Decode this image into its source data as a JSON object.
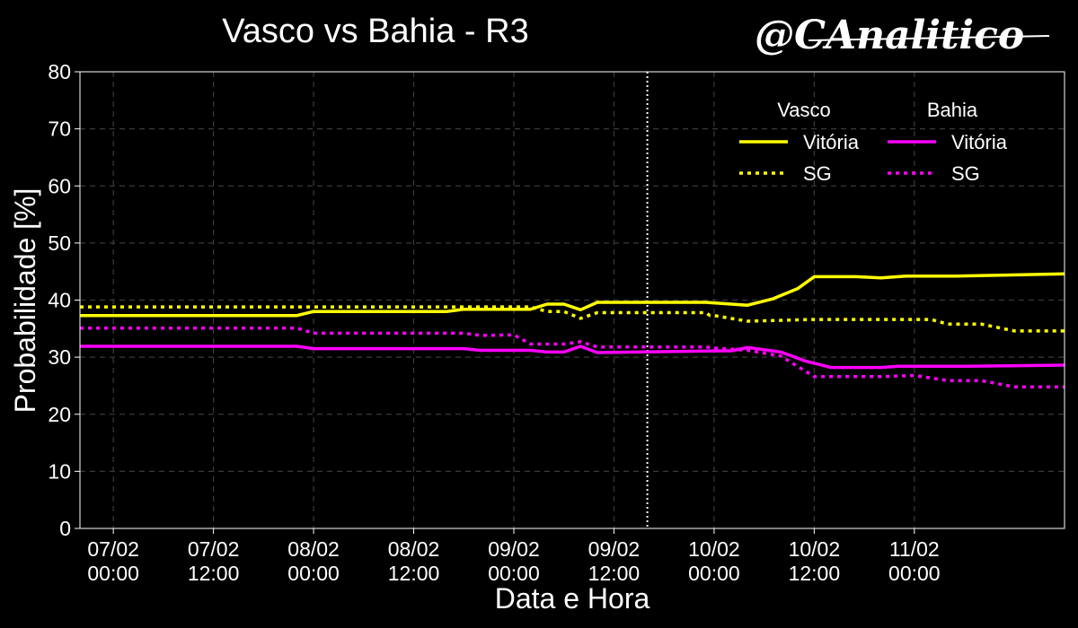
{
  "chart_data": {
    "type": "line",
    "title": "Vasco vs Bahia - R3",
    "watermark": "@CAnalitico",
    "xlabel": "Data e Hora",
    "ylabel": "Probabilidade [%]",
    "ylim": [
      0,
      80
    ],
    "xlim": [
      "06/02 20:00",
      "11/02 18:00"
    ],
    "y_ticks": [
      0,
      10,
      20,
      30,
      40,
      50,
      60,
      70,
      80
    ],
    "x_ticks": [
      {
        "t": "07/02 00:00",
        "line1": "07/02",
        "line2": "00:00"
      },
      {
        "t": "07/02 12:00",
        "line1": "07/02",
        "line2": "12:00"
      },
      {
        "t": "08/02 00:00",
        "line1": "08/02",
        "line2": "00:00"
      },
      {
        "t": "08/02 12:00",
        "line1": "08/02",
        "line2": "12:00"
      },
      {
        "t": "09/02 00:00",
        "line1": "09/02",
        "line2": "00:00"
      },
      {
        "t": "09/02 12:00",
        "line1": "09/02",
        "line2": "12:00"
      },
      {
        "t": "10/02 00:00",
        "line1": "10/02",
        "line2": "00:00"
      },
      {
        "t": "10/02 12:00",
        "line1": "10/02",
        "line2": "12:00"
      },
      {
        "t": "11/02 00:00",
        "line1": "11/02",
        "line2": "00:00"
      }
    ],
    "grid": true,
    "vline": {
      "x": "09/02 16:00",
      "style": "dotted"
    },
    "legend": {
      "placement": "top-right",
      "groups": [
        {
          "title": "Vasco",
          "entries": [
            {
              "label": "Vitória",
              "series": 0
            },
            {
              "label": "SG",
              "series": 1
            }
          ]
        },
        {
          "title": "Bahia",
          "entries": [
            {
              "label": "Vitória",
              "series": 2
            },
            {
              "label": "SG",
              "series": 3
            }
          ]
        }
      ]
    },
    "series": [
      {
        "name": "Vitória",
        "team": "Vasco",
        "color": "#ffff00",
        "style": "solid",
        "points": [
          [
            "06/02 20:00",
            37.3
          ],
          [
            "07/02 22:00",
            37.3
          ],
          [
            "08/02 00:00",
            38.0
          ],
          [
            "08/02 16:00",
            38.0
          ],
          [
            "08/02 18:00",
            38.4
          ],
          [
            "09/02 02:00",
            38.4
          ],
          [
            "09/02 04:00",
            39.3
          ],
          [
            "09/02 06:00",
            39.3
          ],
          [
            "09/02 08:00",
            38.3
          ],
          [
            "09/02 10:00",
            39.6
          ],
          [
            "09/02 23:00",
            39.6
          ],
          [
            "10/02 04:00",
            39.1
          ],
          [
            "10/02 07:00",
            40.2
          ],
          [
            "10/02 10:00",
            42.0
          ],
          [
            "10/02 12:00",
            44.1
          ],
          [
            "10/02 17:00",
            44.1
          ],
          [
            "10/02 20:00",
            43.9
          ],
          [
            "10/02 23:00",
            44.2
          ],
          [
            "11/02 05:00",
            44.2
          ],
          [
            "11/02 18:00",
            44.6
          ]
        ]
      },
      {
        "name": "SG",
        "team": "Vasco",
        "color": "#ffff00",
        "style": "dotted",
        "points": [
          [
            "06/02 20:00",
            38.8
          ],
          [
            "09/02 02:00",
            38.8
          ],
          [
            "09/02 04:00",
            38.0
          ],
          [
            "09/02 06:00",
            38.0
          ],
          [
            "09/02 08:00",
            36.8
          ],
          [
            "09/02 10:00",
            37.8
          ],
          [
            "09/02 23:00",
            37.8
          ],
          [
            "09/02 23:30",
            37.3
          ],
          [
            "10/02 00:00",
            37.3
          ],
          [
            "10/02 04:00",
            36.3
          ],
          [
            "10/02 12:00",
            36.6
          ],
          [
            "11/02 02:00",
            36.6
          ],
          [
            "11/02 04:00",
            35.8
          ],
          [
            "11/02 08:00",
            35.8
          ],
          [
            "11/02 12:00",
            34.6
          ],
          [
            "11/02 18:00",
            34.6
          ]
        ]
      },
      {
        "name": "Vitória",
        "team": "Bahia",
        "color": "#ff00ff",
        "style": "solid",
        "points": [
          [
            "06/02 20:00",
            31.9
          ],
          [
            "07/02 22:00",
            31.9
          ],
          [
            "08/02 00:00",
            31.5
          ],
          [
            "08/02 18:00",
            31.5
          ],
          [
            "08/02 20:00",
            31.2
          ],
          [
            "09/02 02:00",
            31.2
          ],
          [
            "09/02 04:00",
            30.9
          ],
          [
            "09/02 06:00",
            30.9
          ],
          [
            "09/02 08:00",
            31.9
          ],
          [
            "09/02 10:00",
            30.8
          ],
          [
            "10/02 00:00",
            31.1
          ],
          [
            "10/02 02:00",
            31.1
          ],
          [
            "10/02 04:00",
            31.7
          ],
          [
            "10/02 08:00",
            30.9
          ],
          [
            "10/02 11:00",
            29.3
          ],
          [
            "10/02 14:00",
            28.2
          ],
          [
            "10/02 20:00",
            28.2
          ],
          [
            "10/02 22:00",
            28.4
          ],
          [
            "11/02 06:00",
            28.4
          ],
          [
            "11/02 18:00",
            28.6
          ]
        ]
      },
      {
        "name": "SG",
        "team": "Bahia",
        "color": "#ff00ff",
        "style": "dotted",
        "points": [
          [
            "06/02 20:00",
            35.1
          ],
          [
            "07/02 22:00",
            35.1
          ],
          [
            "08/02 00:00",
            34.2
          ],
          [
            "08/02 18:00",
            34.2
          ],
          [
            "08/02 20:00",
            33.8
          ],
          [
            "09/02 00:00",
            33.9
          ],
          [
            "09/02 02:00",
            32.3
          ],
          [
            "09/02 06:00",
            32.3
          ],
          [
            "09/02 08:00",
            32.7
          ],
          [
            "09/02 10:00",
            31.8
          ],
          [
            "09/02 23:00",
            31.8
          ],
          [
            "10/02 00:00",
            31.6
          ],
          [
            "10/02 04:00",
            31.2
          ],
          [
            "10/02 08:00",
            30.2
          ],
          [
            "10/02 12:00",
            26.6
          ],
          [
            "10/02 20:00",
            26.6
          ],
          [
            "11/02 00:00",
            26.8
          ],
          [
            "11/02 04:00",
            25.9
          ],
          [
            "11/02 08:00",
            25.9
          ],
          [
            "11/02 12:00",
            24.8
          ],
          [
            "11/02 18:00",
            24.8
          ]
        ]
      }
    ]
  }
}
